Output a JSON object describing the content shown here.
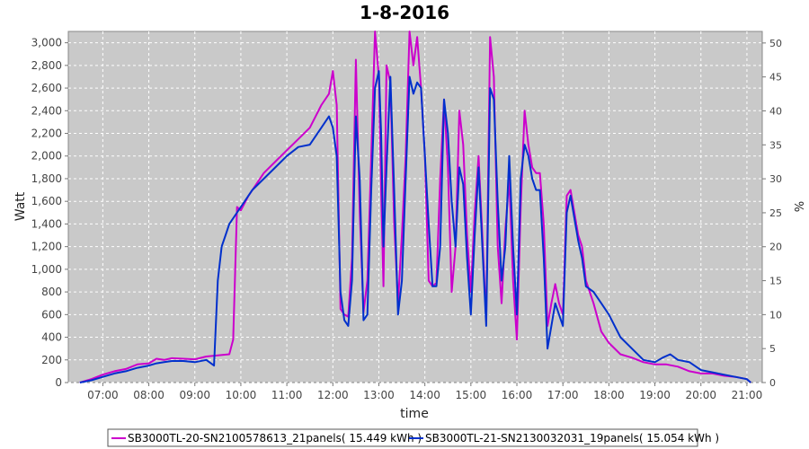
{
  "chart_data": {
    "type": "line",
    "title": "1-8-2016",
    "xlabel": "time",
    "ylabel": "Watt",
    "y2label": "%",
    "xlim": [
      "06:15",
      "21:20"
    ],
    "ylim": [
      0,
      3100
    ],
    "y2lim": [
      0,
      51.7
    ],
    "x_ticks": [
      "07:00",
      "08:00",
      "09:00",
      "10:00",
      "11:00",
      "12:00",
      "13:00",
      "14:00",
      "15:00",
      "16:00",
      "17:00",
      "18:00",
      "19:00",
      "20:00",
      "21:00"
    ],
    "y_ticks": [
      "0",
      "200",
      "400",
      "600",
      "800",
      "1,000",
      "1,200",
      "1,400",
      "1,600",
      "1,800",
      "2,000",
      "2,200",
      "2,400",
      "2,600",
      "2,800",
      "3,000"
    ],
    "y2_ticks": [
      "0",
      "5",
      "10",
      "15",
      "20",
      "25",
      "30",
      "35",
      "40",
      "45",
      "50"
    ],
    "background_color": "#c9c9c9",
    "grid": true,
    "legend_position": "bottom",
    "series": [
      {
        "name": "SB3000TL-20-SN2100578613_21panels( 15.449 kWh )",
        "color": "#cc00cc",
        "x": [
          "06:30",
          "06:45",
          "07:00",
          "07:15",
          "07:30",
          "07:45",
          "08:00",
          "08:10",
          "08:20",
          "08:30",
          "08:45",
          "09:00",
          "09:15",
          "09:30",
          "09:45",
          "09:50",
          "09:55",
          "10:00",
          "10:10",
          "10:20",
          "10:30",
          "10:45",
          "11:00",
          "11:15",
          "11:30",
          "11:45",
          "11:55",
          "12:00",
          "12:05",
          "12:10",
          "12:15",
          "12:20",
          "12:25",
          "12:30",
          "12:35",
          "12:40",
          "12:45",
          "12:50",
          "12:55",
          "13:00",
          "13:03",
          "13:06",
          "13:10",
          "13:15",
          "13:20",
          "13:25",
          "13:30",
          "13:35",
          "13:40",
          "13:45",
          "13:50",
          "13:55",
          "14:00",
          "14:05",
          "14:10",
          "14:15",
          "14:20",
          "14:25",
          "14:30",
          "14:35",
          "14:40",
          "14:45",
          "14:50",
          "14:55",
          "15:00",
          "15:05",
          "15:10",
          "15:15",
          "15:20",
          "15:25",
          "15:30",
          "15:35",
          "15:40",
          "15:45",
          "15:50",
          "15:55",
          "16:00",
          "16:05",
          "16:10",
          "16:15",
          "16:20",
          "16:25",
          "16:30",
          "16:35",
          "16:40",
          "16:45",
          "16:50",
          "16:55",
          "17:00",
          "17:05",
          "17:10",
          "17:15",
          "17:20",
          "17:25",
          "17:30",
          "17:40",
          "17:50",
          "18:00",
          "18:15",
          "18:30",
          "18:45",
          "19:00",
          "19:15",
          "19:30",
          "19:45",
          "20:00",
          "20:15",
          "20:30",
          "20:45",
          "21:00",
          "21:05"
        ],
        "values": [
          0,
          30,
          70,
          100,
          120,
          160,
          170,
          210,
          200,
          215,
          210,
          205,
          230,
          240,
          250,
          380,
          1550,
          1520,
          1650,
          1750,
          1850,
          1950,
          2050,
          2150,
          2250,
          2450,
          2550,
          2750,
          2450,
          650,
          600,
          580,
          1100,
          2850,
          1500,
          620,
          900,
          2000,
          3100,
          2700,
          1700,
          850,
          2800,
          2650,
          1400,
          700,
          1300,
          2000,
          3100,
          2800,
          3050,
          2600,
          2000,
          900,
          850,
          880,
          1800,
          2500,
          1900,
          800,
          1200,
          2400,
          2100,
          1300,
          800,
          1500,
          2000,
          1300,
          550,
          3050,
          2700,
          1200,
          700,
          1350,
          1800,
          900,
          380,
          1550,
          2400,
          2100,
          1900,
          1850,
          1850,
          1400,
          500,
          700,
          870,
          700,
          600,
          1650,
          1700,
          1500,
          1300,
          1200,
          900,
          700,
          450,
          350,
          250,
          220,
          180,
          160,
          160,
          140,
          100,
          80,
          80,
          60,
          50,
          30,
          0
        ]
      },
      {
        "name": "SB3000TL-21-SN2130032031_19panels( 15.054 kWh )",
        "color": "#0030cc",
        "x": [
          "06:30",
          "06:45",
          "07:00",
          "07:15",
          "07:30",
          "07:45",
          "08:00",
          "08:10",
          "08:20",
          "08:30",
          "08:45",
          "09:00",
          "09:15",
          "09:25",
          "09:30",
          "09:35",
          "09:40",
          "09:45",
          "10:00",
          "10:15",
          "10:30",
          "10:45",
          "11:00",
          "11:15",
          "11:30",
          "11:45",
          "11:55",
          "12:00",
          "12:05",
          "12:10",
          "12:15",
          "12:20",
          "12:25",
          "12:30",
          "12:35",
          "12:40",
          "12:45",
          "12:50",
          "12:55",
          "13:00",
          "13:03",
          "13:06",
          "13:10",
          "13:15",
          "13:20",
          "13:25",
          "13:30",
          "13:35",
          "13:40",
          "13:45",
          "13:50",
          "13:55",
          "14:00",
          "14:05",
          "14:10",
          "14:15",
          "14:20",
          "14:25",
          "14:30",
          "14:35",
          "14:40",
          "14:45",
          "14:50",
          "14:55",
          "15:00",
          "15:05",
          "15:10",
          "15:15",
          "15:20",
          "15:25",
          "15:30",
          "15:35",
          "15:40",
          "15:45",
          "15:50",
          "15:55",
          "16:00",
          "16:05",
          "16:10",
          "16:15",
          "16:20",
          "16:25",
          "16:30",
          "16:35",
          "16:40",
          "16:45",
          "16:50",
          "16:55",
          "17:00",
          "17:05",
          "17:10",
          "17:15",
          "17:20",
          "17:25",
          "17:30",
          "17:40",
          "17:50",
          "18:00",
          "18:15",
          "18:30",
          "18:45",
          "19:00",
          "19:10",
          "19:20",
          "19:30",
          "19:45",
          "20:00",
          "20:15",
          "20:30",
          "20:45",
          "21:00",
          "21:05"
        ],
        "values": [
          0,
          20,
          50,
          80,
          100,
          130,
          150,
          170,
          180,
          190,
          190,
          180,
          200,
          150,
          900,
          1200,
          1300,
          1400,
          1550,
          1700,
          1800,
          1900,
          2000,
          2080,
          2100,
          2250,
          2350,
          2250,
          2000,
          800,
          550,
          500,
          900,
          2350,
          1800,
          550,
          600,
          1700,
          2600,
          2750,
          2200,
          1200,
          1900,
          2700,
          1700,
          600,
          900,
          1800,
          2700,
          2550,
          2650,
          2600,
          2000,
          1400,
          850,
          850,
          1200,
          2500,
          2200,
          1600,
          1200,
          1900,
          1750,
          1100,
          600,
          1300,
          1900,
          1200,
          500,
          2600,
          2500,
          1600,
          900,
          1200,
          2000,
          1200,
          600,
          1800,
          2100,
          2000,
          1800,
          1700,
          1700,
          1100,
          300,
          500,
          700,
          600,
          500,
          1500,
          1650,
          1450,
          1250,
          1100,
          850,
          800,
          700,
          600,
          400,
          300,
          200,
          180,
          220,
          250,
          200,
          180,
          110,
          90,
          70,
          50,
          30,
          0
        ]
      }
    ]
  }
}
